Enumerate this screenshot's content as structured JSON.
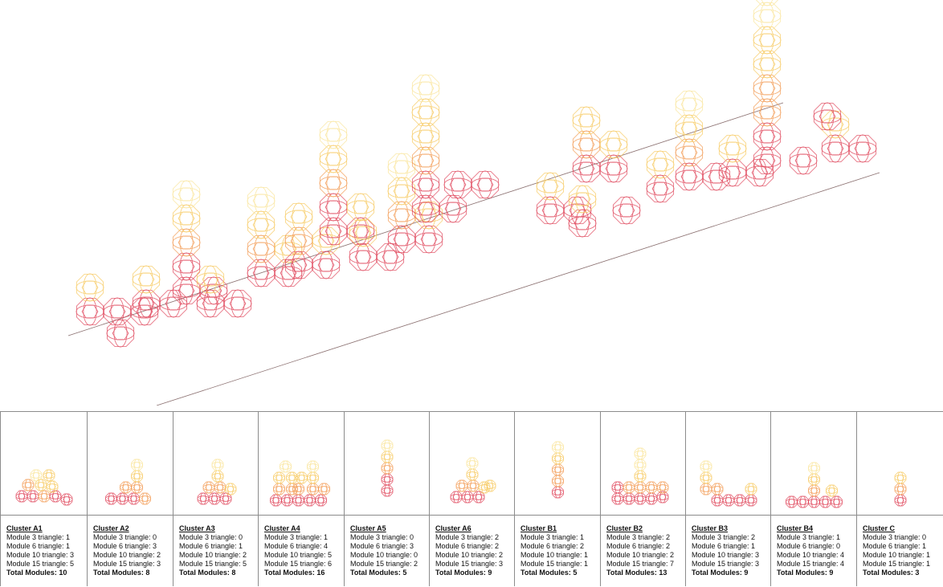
{
  "labels": {
    "m3": "Module 3 triangle:",
    "m6": "Module 6 triangle:",
    "m10": "Module 10 triangle:",
    "m15": "Module 15 triangle:",
    "total": "Total Modules:"
  },
  "colors": {
    "red": "#e0455a",
    "orange": "#f39a52",
    "yellow": "#f7c95f",
    "pale": "#fae59a",
    "axis": "#8a6f6f",
    "grid": "#8c8c8c"
  },
  "clusters": [
    {
      "name": "Cluster A1",
      "m3": 1,
      "m6": 1,
      "m10": 3,
      "m15": 5,
      "total": 10
    },
    {
      "name": "Cluster A2",
      "m3": 0,
      "m6": 3,
      "m10": 2,
      "m15": 3,
      "total": 8
    },
    {
      "name": "Cluster A3",
      "m3": 0,
      "m6": 1,
      "m10": 2,
      "m15": 5,
      "total": 8
    },
    {
      "name": "Cluster A4",
      "m3": 1,
      "m6": 4,
      "m10": 5,
      "m15": 6,
      "total": 16
    },
    {
      "name": "Cluster A5",
      "m3": 0,
      "m6": 3,
      "m10": 0,
      "m15": 2,
      "total": 5
    },
    {
      "name": "Cluster A6",
      "m3": 2,
      "m6": 2,
      "m10": 2,
      "m15": 3,
      "total": 9
    },
    {
      "name": "Cluster B1",
      "m3": 1,
      "m6": 2,
      "m10": 1,
      "m15": 1,
      "total": 5
    },
    {
      "name": "Cluster B2",
      "m3": 2,
      "m6": 2,
      "m10": 2,
      "m15": 7,
      "total": 13
    },
    {
      "name": "Cluster B3",
      "m3": 2,
      "m6": 1,
      "m10": 3,
      "m15": 3,
      "total": 9
    },
    {
      "name": "Cluster B4",
      "m3": 1,
      "m6": 0,
      "m10": 4,
      "m15": 4,
      "total": 9
    },
    {
      "name": "Cluster C",
      "m3": 0,
      "m6": 1,
      "m10": 1,
      "m15": 1,
      "total": 3
    }
  ]
}
